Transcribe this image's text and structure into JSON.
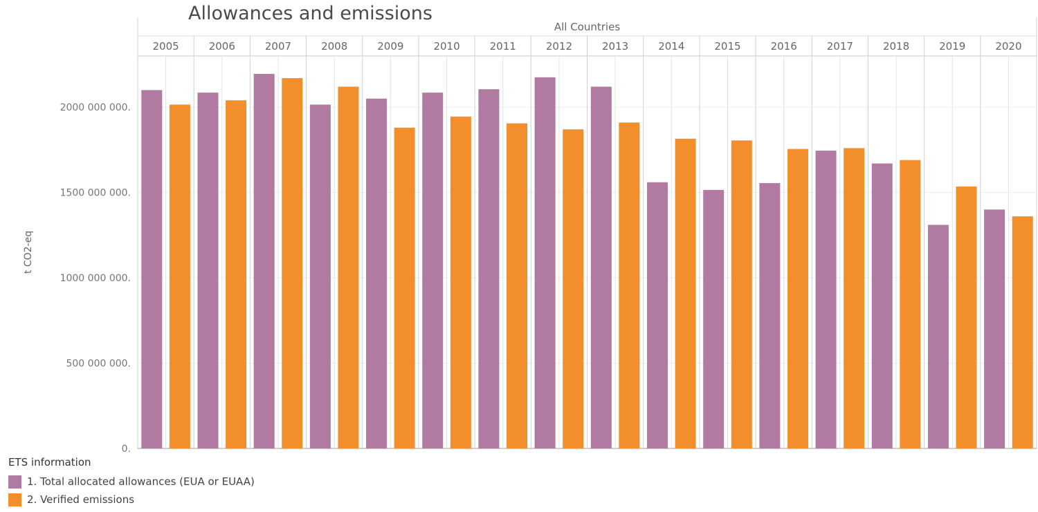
{
  "chart_data": {
    "type": "bar",
    "title": "Allowances and emissions",
    "header": "All Countries",
    "ylabel": "t CO2-eq",
    "ylim": [
      0,
      2300000000
    ],
    "yticks": [
      0,
      500000000,
      1000000000,
      1500000000,
      2000000000
    ],
    "ytick_labels": [
      "0.",
      "500 000 000.",
      "1000 000 000.",
      "1500 000 000.",
      "2000 000 000."
    ],
    "categories": [
      "2005",
      "2006",
      "2007",
      "2008",
      "2009",
      "2010",
      "2011",
      "2012",
      "2013",
      "2014",
      "2015",
      "2016",
      "2017",
      "2018",
      "2019",
      "2020"
    ],
    "series": [
      {
        "name": "1. Total allocated allowances (EUA or EUAA)",
        "color": "#b07aa1",
        "values": [
          2100000000,
          2085000000,
          2195000000,
          2015000000,
          2050000000,
          2085000000,
          2105000000,
          2175000000,
          2120000000,
          1560000000,
          1515000000,
          1555000000,
          1745000000,
          1670000000,
          1310000000,
          1400000000
        ]
      },
      {
        "name": "2. Verified emissions",
        "color": "#f28e2b",
        "values": [
          2015000000,
          2040000000,
          2170000000,
          2120000000,
          1880000000,
          1945000000,
          1905000000,
          1870000000,
          1910000000,
          1815000000,
          1805000000,
          1755000000,
          1760000000,
          1690000000,
          1535000000,
          1360000000
        ]
      }
    ],
    "legend_title": "ETS information",
    "legend_position": "bottom-left",
    "grid": true
  }
}
